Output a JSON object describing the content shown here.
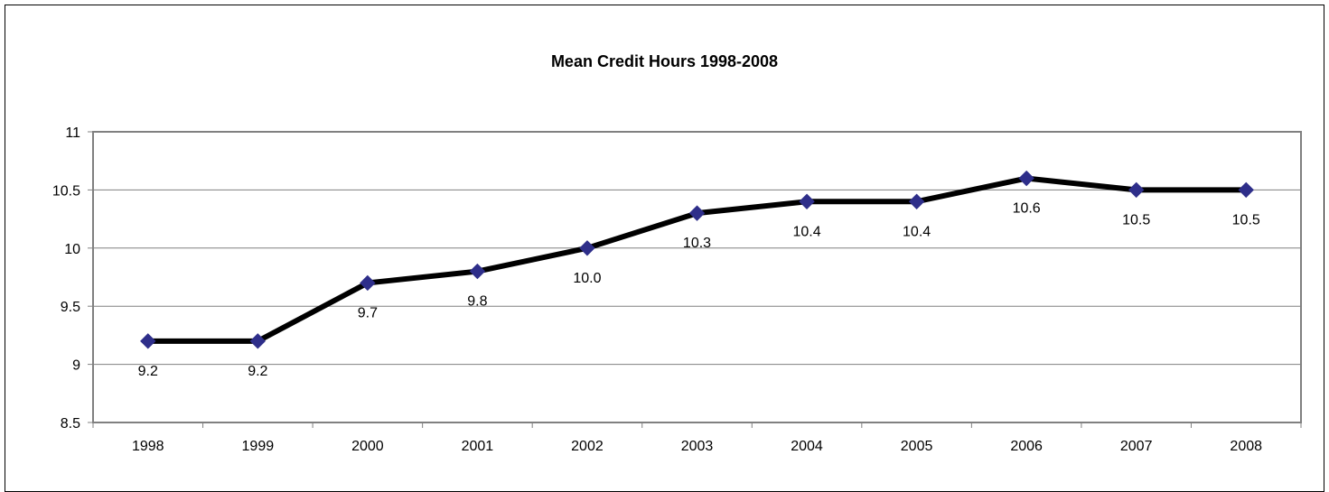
{
  "chart_data": {
    "type": "line",
    "title": "Mean Credit Hours 1998-2008",
    "xlabel": "",
    "ylabel": "",
    "categories": [
      "1998",
      "1999",
      "2000",
      "2001",
      "2002",
      "2003",
      "2004",
      "2005",
      "2006",
      "2007",
      "2008"
    ],
    "series": [
      {
        "values": [
          9.2,
          9.2,
          9.7,
          9.8,
          10.0,
          10.3,
          10.4,
          10.4,
          10.6,
          10.5,
          10.5
        ],
        "data_labels": [
          "9.2",
          "9.2",
          "9.7",
          "9.8",
          "10.0",
          "10.3",
          "10.4",
          "10.4",
          "10.6",
          "10.5",
          "10.5"
        ],
        "line_color": "#000000",
        "marker_color": "#2E2E8A",
        "marker": "diamond"
      }
    ],
    "ylim": [
      8.5,
      11
    ],
    "yticks": [
      "8.5",
      "9",
      "9.5",
      "10",
      "10.5",
      "11"
    ],
    "grid": true,
    "legend": "none"
  }
}
